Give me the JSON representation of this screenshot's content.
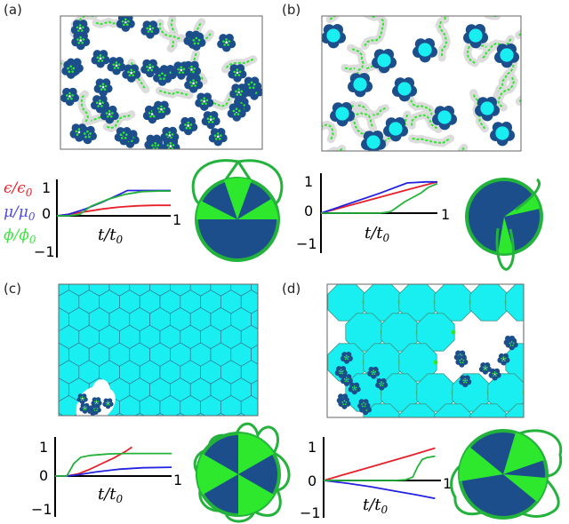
{
  "panels": {
    "a": {
      "label": "(a)"
    },
    "b": {
      "label": "(b)"
    },
    "c": {
      "label": "(c)"
    },
    "d": {
      "label": "(d)"
    }
  },
  "axes": {
    "y_top": "1",
    "y_zero": "0",
    "y_bottom": "−1",
    "x_end": "1",
    "x_label": "t/t",
    "x_label_sub": "0"
  },
  "legend": {
    "eps": "ϵ/ϵ",
    "eps_sub": "0",
    "mu": "μ/μ",
    "mu_sub": "0",
    "phi": "ϕ/ϕ",
    "phi_sub": "0"
  },
  "colors": {
    "dark_blue": "#1c4e8c",
    "cyan": "#19e6ee",
    "green": "#2ee82e",
    "line_green": "#23b23b",
    "red": "#e8202a",
    "blue": "#2222e0",
    "gray": "#d9d9d9"
  },
  "chart_data": [
    {
      "type": "line",
      "panel": "a",
      "xlim": [
        0,
        1
      ],
      "ylim": [
        -1,
        1
      ],
      "series": [
        {
          "color": "red",
          "x": [
            0,
            0.1,
            0.25,
            0.4,
            0.55,
            0.7,
            0.85,
            1.0
          ],
          "y": [
            0.0,
            0.05,
            0.15,
            0.25,
            0.32,
            0.36,
            0.38,
            0.38
          ]
        },
        {
          "color": "blue",
          "x": [
            0,
            0.1,
            0.25,
            0.4,
            0.55,
            0.62,
            0.8,
            1.0
          ],
          "y": [
            0.0,
            0.05,
            0.25,
            0.5,
            0.78,
            0.92,
            0.92,
            0.92
          ]
        },
        {
          "color": "green",
          "x": [
            0,
            0.1,
            0.2,
            0.3,
            0.45,
            0.6,
            0.75,
            0.9,
            1.0
          ],
          "y": [
            0.0,
            0.0,
            0.05,
            0.35,
            0.6,
            0.78,
            0.88,
            0.9,
            0.9
          ]
        }
      ]
    },
    {
      "type": "line",
      "panel": "b",
      "xlim": [
        0,
        1
      ],
      "ylim": [
        -1,
        1
      ],
      "series": [
        {
          "color": "red",
          "x": [
            0,
            0.25,
            0.5,
            0.75,
            1.0
          ],
          "y": [
            0.0,
            0.24,
            0.48,
            0.72,
            0.95
          ]
        },
        {
          "color": "blue",
          "x": [
            0,
            0.25,
            0.5,
            0.74,
            0.9,
            1.0
          ],
          "y": [
            0.0,
            0.3,
            0.6,
            0.92,
            0.95,
            0.95
          ]
        },
        {
          "color": "green",
          "x": [
            0,
            0.5,
            0.55,
            0.6,
            0.66,
            0.72,
            0.8,
            0.86,
            0.92,
            1.0
          ],
          "y": [
            0.0,
            0.0,
            0.02,
            0.05,
            0.2,
            0.35,
            0.5,
            0.62,
            0.78,
            0.9
          ]
        }
      ]
    },
    {
      "type": "line",
      "panel": "c",
      "xlim": [
        0,
        1
      ],
      "ylim": [
        -1,
        1
      ],
      "series": [
        {
          "color": "red",
          "x": [
            0,
            0.1,
            0.2,
            0.3,
            0.4,
            0.5,
            0.6,
            0.66
          ],
          "y": [
            0.0,
            0.0,
            0.08,
            0.25,
            0.45,
            0.65,
            0.88,
            1.05
          ]
        },
        {
          "color": "blue",
          "x": [
            0,
            0.1,
            0.2,
            0.35,
            0.55,
            0.75,
            1.0
          ],
          "y": [
            0.0,
            0.0,
            0.05,
            0.15,
            0.25,
            0.3,
            0.32
          ]
        },
        {
          "color": "green",
          "x": [
            0,
            0.1,
            0.16,
            0.22,
            0.3,
            0.45,
            0.6,
            0.8,
            1.0
          ],
          "y": [
            0.0,
            0.0,
            0.45,
            0.68,
            0.75,
            0.8,
            0.82,
            0.82,
            0.82
          ]
        }
      ]
    },
    {
      "type": "line",
      "panel": "d",
      "xlim": [
        0,
        1
      ],
      "ylim": [
        -1,
        1
      ],
      "series": [
        {
          "color": "red",
          "x": [
            0,
            0.25,
            0.5,
            0.75,
            0.95
          ],
          "y": [
            0.0,
            0.25,
            0.5,
            0.75,
            0.96
          ]
        },
        {
          "color": "blue",
          "x": [
            0,
            0.2,
            0.4,
            0.6,
            0.8,
            0.95
          ],
          "y": [
            0.0,
            -0.08,
            -0.18,
            -0.3,
            -0.42,
            -0.52
          ]
        },
        {
          "color": "green",
          "x": [
            0,
            0.4,
            0.6,
            0.7,
            0.76,
            0.8,
            0.84,
            0.88,
            0.95
          ],
          "y": [
            0.0,
            0.0,
            0.0,
            0.02,
            0.1,
            0.4,
            0.62,
            0.68,
            0.72
          ]
        }
      ]
    }
  ]
}
